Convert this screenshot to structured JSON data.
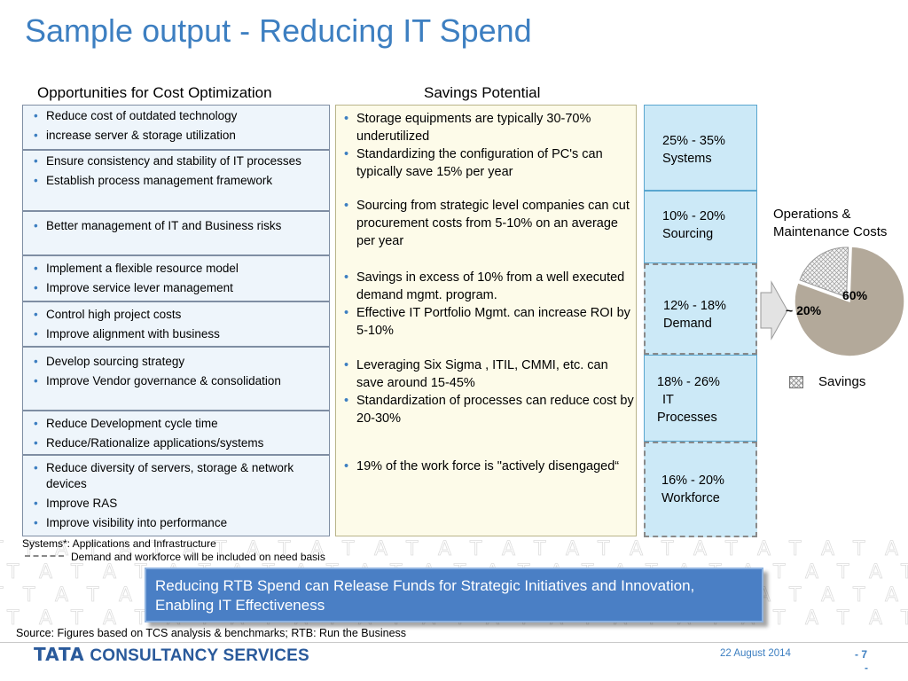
{
  "title": "Sample output - Reducing IT Spend",
  "headers": {
    "opportunities": "Opportunities for Cost Optimization",
    "savings": "Savings Potential"
  },
  "opportunities": [
    {
      "items": [
        "Reduce cost of outdated technology",
        "increase server & storage utilization"
      ]
    },
    {
      "items": [
        "Ensure consistency and stability of IT processes",
        "Establish process management framework"
      ]
    },
    {
      "items": [
        "Better management of IT and Business risks"
      ]
    },
    {
      "items": [
        "Implement a flexible resource model",
        "Improve service lever management"
      ]
    },
    {
      "items": [
        "Control high project costs",
        "Improve alignment with business"
      ]
    },
    {
      "items": [
        "Develop sourcing strategy",
        "Improve Vendor governance & consolidation"
      ]
    },
    {
      "items": [
        "Reduce Development cycle time",
        "Reduce/Rationalize applications/systems"
      ]
    },
    {
      "items": [
        "Reduce diversity of servers, storage & network devices",
        "Improve RAS",
        "Improve visibility into performance"
      ]
    }
  ],
  "savings_details": [
    {
      "items": [
        "Storage equipments are typically 30-70% underutilized",
        "Standardizing the configuration of PC's can typically save 15% per year"
      ]
    },
    {
      "items": [
        "Sourcing from strategic level companies can cut procurement costs from 5-10% on an average per year"
      ]
    },
    {
      "items": [
        "Savings in excess of 10% from a well executed demand mgmt. program.",
        "Effective IT Portfolio Mgmt. can increase ROI by 5-10%"
      ]
    },
    {
      "items": [
        "Leveraging Six Sigma , ITIL, CMMI, etc. can save around 15-45%",
        "Standardization of processes can reduce cost by 20-30%"
      ]
    },
    {
      "items": [
        "19% of the work force is \"actively disengaged“"
      ]
    }
  ],
  "savings_boxes": [
    {
      "line1": "25% - 35%",
      "line2": "Systems",
      "style": "solid"
    },
    {
      "line1": "10% - 20%",
      "line2": "Sourcing",
      "style": "solid"
    },
    {
      "line1": "12% - 18%",
      "line2": "Demand",
      "style": "dashed"
    },
    {
      "line1": "18% - 26%",
      "line2": "IT",
      "line3": "Processes",
      "style": "solid"
    },
    {
      "line1": "16% - 20%",
      "line2": "Workforce",
      "style": "dashed"
    }
  ],
  "pie": {
    "label_line1": "Operations &",
    "label_line2": "Maintenance Costs",
    "savings_share_label": "~ 20%",
    "other_share_label": "60%",
    "savings_fraction": 0.2,
    "main_color": "#b3a99a",
    "legend_label": "Savings"
  },
  "footnotes": {
    "systems": "Systems*: Applications and Infrastructure",
    "demand": "Demand and workforce will be included on need basis"
  },
  "banner": "Reducing RTB Spend can Release Funds for Strategic Initiatives and Innovation, Enabling IT Effectiveness",
  "source": "Source: Figures based on TCS analysis & benchmarks; RTB: Run the Business",
  "footer": {
    "logo_brand": "TATA",
    "logo_rest": "CONSULTANCY SERVICES",
    "date": "22 August 2014",
    "page": "- 7",
    "page_suffix": "-"
  },
  "colors": {
    "title_blue": "#3d7fc1",
    "banner_blue": "#4a7fc5",
    "savings_box": "#cce9f7",
    "mid_panel": "#fdfbe9"
  }
}
